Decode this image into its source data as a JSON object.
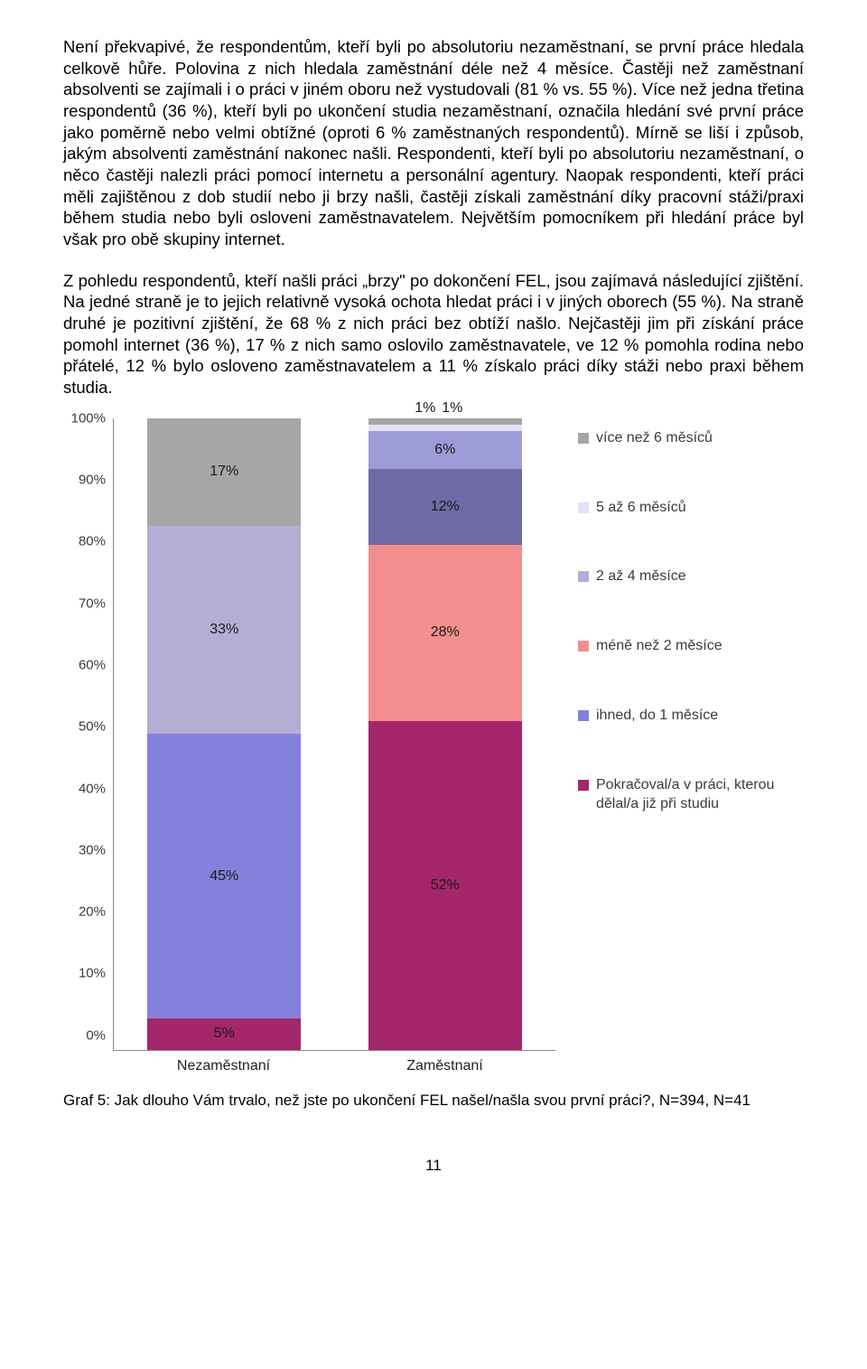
{
  "paragraphs": {
    "p1": "Není překvapivé, že respondentům, kteří byli po absolutoriu nezaměstnaní, se první práce hledala celkově hůře. Polovina z nich hledala zaměstnání déle než 4 měsíce. Častěji než zaměstnaní absolventi se zajímali i o práci v jiném oboru než vystudovali (81 % vs. 55 %). Více než jedna třetina respondentů (36 %), kteří byli po ukončení studia nezaměstnaní, označila hledání své první práce jako poměrně nebo velmi obtížné (oproti 6 % zaměstnaných respondentů). Mírně se liší i způsob, jakým absolventi zaměstnání nakonec našli. Respondenti, kteří byli po absolutoriu nezaměstnaní, o něco častěji nalezli práci pomocí internetu a personální agentury. Naopak respondenti, kteří práci měli zajištěnou z dob studií nebo ji brzy našli, častěji získali zaměstnání díky pracovní stáži/praxi během studia nebo byli osloveni zaměstnavatelem. Největším pomocníkem při hledání práce byl však pro obě skupiny internet.",
    "p2": "Z pohledu respondentů, kteří našli práci „brzy\" po dokončení FEL, jsou zajímavá následující zjištění. Na jedné straně je to jejich relativně vysoká ochota hledat práci i v jiných oborech (55 %). Na straně druhé je pozitivní zjištění, že 68 % z nich práci bez obtíží našlo. Nejčastěji jim při získání práce pomohl internet (36 %), 17 % z nich samo oslovilo zaměstnavatele, ve 12 % pomohla rodina nebo přátelé, 12 % bylo osloveno zaměstnavatelem a 11 % získalo práci díky stáži nebo praxi během studia."
  },
  "chart": {
    "type": "stacked-bar",
    "ylim": [
      0,
      100
    ],
    "ytick_step": 10,
    "yticks": [
      "100%",
      "90%",
      "80%",
      "70%",
      "60%",
      "50%",
      "40%",
      "30%",
      "20%",
      "10%",
      "0%"
    ],
    "categories": [
      "Nezaměstnaní",
      "Zaměstnaní"
    ],
    "series": [
      {
        "label": "více než 6 měsíců",
        "color": "#a6a6a6"
      },
      {
        "label": "5 až 6 měsíců",
        "color": "#e4e0f5"
      },
      {
        "label": "2 až 4 měsíce",
        "color": "#b4aed4"
      },
      {
        "label": "méně než 2 měsíce",
        "color": "#f28e8e"
      },
      {
        "label": "ihned, do 1 měsíce",
        "color": "#8481dd"
      },
      {
        "label": "Pokračoval/a v práci, kterou dělal/a již při studiu",
        "color": "#a4266b"
      }
    ],
    "bars": [
      {
        "name": "Nezaměstnaní",
        "segments": [
          {
            "label": "5%",
            "value": 5,
            "color": "#a4266b",
            "textInside": true
          },
          {
            "label": "45%",
            "value": 45,
            "color": "#8481dd",
            "textInside": true
          },
          {
            "label": "33%",
            "value": 33,
            "color": "#b4aed4",
            "textInside": true
          },
          {
            "label": "17%",
            "value": 17,
            "color": "#a6a6a6",
            "textInside": true
          }
        ]
      },
      {
        "name": "Zaměstnaní",
        "segments": [
          {
            "label": "52%",
            "value": 52,
            "color": "#a4266b",
            "textInside": true
          },
          {
            "label": "28%",
            "value": 28,
            "color": "#f28e8e",
            "textInside": true
          },
          {
            "label": "12%",
            "value": 12,
            "color": "#6e6aa6",
            "textInside": true
          },
          {
            "label": "6%",
            "value": 6,
            "color": "#9e9bd9",
            "textInside": true
          },
          {
            "label": "1%",
            "value": 1,
            "color": "#e4e0f5",
            "textInside": false,
            "offsetX": -22
          },
          {
            "label": "1%",
            "value": 1,
            "color": "#a6a6a6",
            "textInside": false,
            "offsetX": 8
          }
        ]
      }
    ],
    "caption": "Graf 5: Jak dlouho Vám trvalo, než jste po ukončení FEL našel/našla svou první práci?, N=394, N=41"
  },
  "pagenum": "11"
}
